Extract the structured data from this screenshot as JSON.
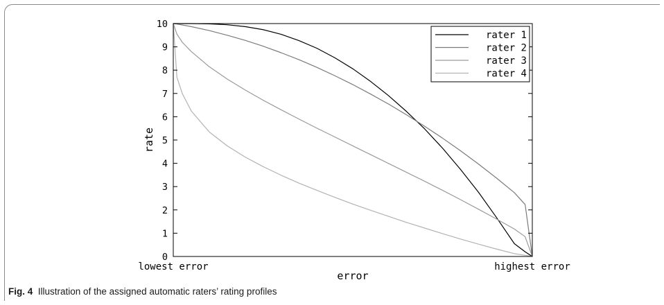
{
  "figure": {
    "caption_label": "Fig. 4",
    "caption_text": "Illustration of the assigned automatic raters’ rating profiles"
  },
  "chart_data": {
    "type": "line",
    "title": "",
    "xlabel": "error",
    "ylabel": "rate",
    "x_tick_labels": [
      "lowest error",
      "highest error"
    ],
    "xlim": [
      0,
      1
    ],
    "ylim": [
      0,
      10
    ],
    "y_ticks": [
      0,
      1,
      2,
      3,
      4,
      5,
      6,
      7,
      8,
      9,
      10
    ],
    "grid": false,
    "legend_position": "top-right",
    "x": [
      0,
      0.01,
      0.025,
      0.05,
      0.1,
      0.15,
      0.2,
      0.25,
      0.3,
      0.35,
      0.4,
      0.45,
      0.5,
      0.55,
      0.6,
      0.65,
      0.7,
      0.75,
      0.8,
      0.85,
      0.9,
      0.95,
      0.98,
      1
    ],
    "series": [
      {
        "name": "rater 1",
        "color": "#000000",
        "values": [
          10,
          10,
          10,
          10,
          9.99,
          9.95,
          9.87,
          9.74,
          9.54,
          9.27,
          8.94,
          8.53,
          8.06,
          7.51,
          6.9,
          6.22,
          5.48,
          4.65,
          3.74,
          2.76,
          1.68,
          0.55,
          0.2,
          0
        ]
      },
      {
        "name": "rater 2",
        "color": "#7a7a7a",
        "values": [
          10,
          9.98,
          9.94,
          9.87,
          9.7,
          9.5,
          9.28,
          9.03,
          8.75,
          8.45,
          8.12,
          7.76,
          7.38,
          6.97,
          6.54,
          6.08,
          5.59,
          5.08,
          4.54,
          3.97,
          3.37,
          2.74,
          2.23,
          0
        ]
      },
      {
        "name": "rater 3",
        "color": "#9a9a9a",
        "values": [
          10,
          9.55,
          9.2,
          8.8,
          8.15,
          7.62,
          7.15,
          6.71,
          6.3,
          5.9,
          5.51,
          5.13,
          4.75,
          4.37,
          3.99,
          3.61,
          3.23,
          2.84,
          2.44,
          2.03,
          1.61,
          1.18,
          0.85,
          0
        ]
      },
      {
        "name": "rater 4",
        "color": "#b2b2b2",
        "values": [
          10,
          7.7,
          7.0,
          6.25,
          5.35,
          4.75,
          4.27,
          3.86,
          3.49,
          3.15,
          2.84,
          2.54,
          2.25,
          1.98,
          1.72,
          1.46,
          1.22,
          0.98,
          0.75,
          0.53,
          0.32,
          0.12,
          0.05,
          0
        ]
      }
    ]
  }
}
